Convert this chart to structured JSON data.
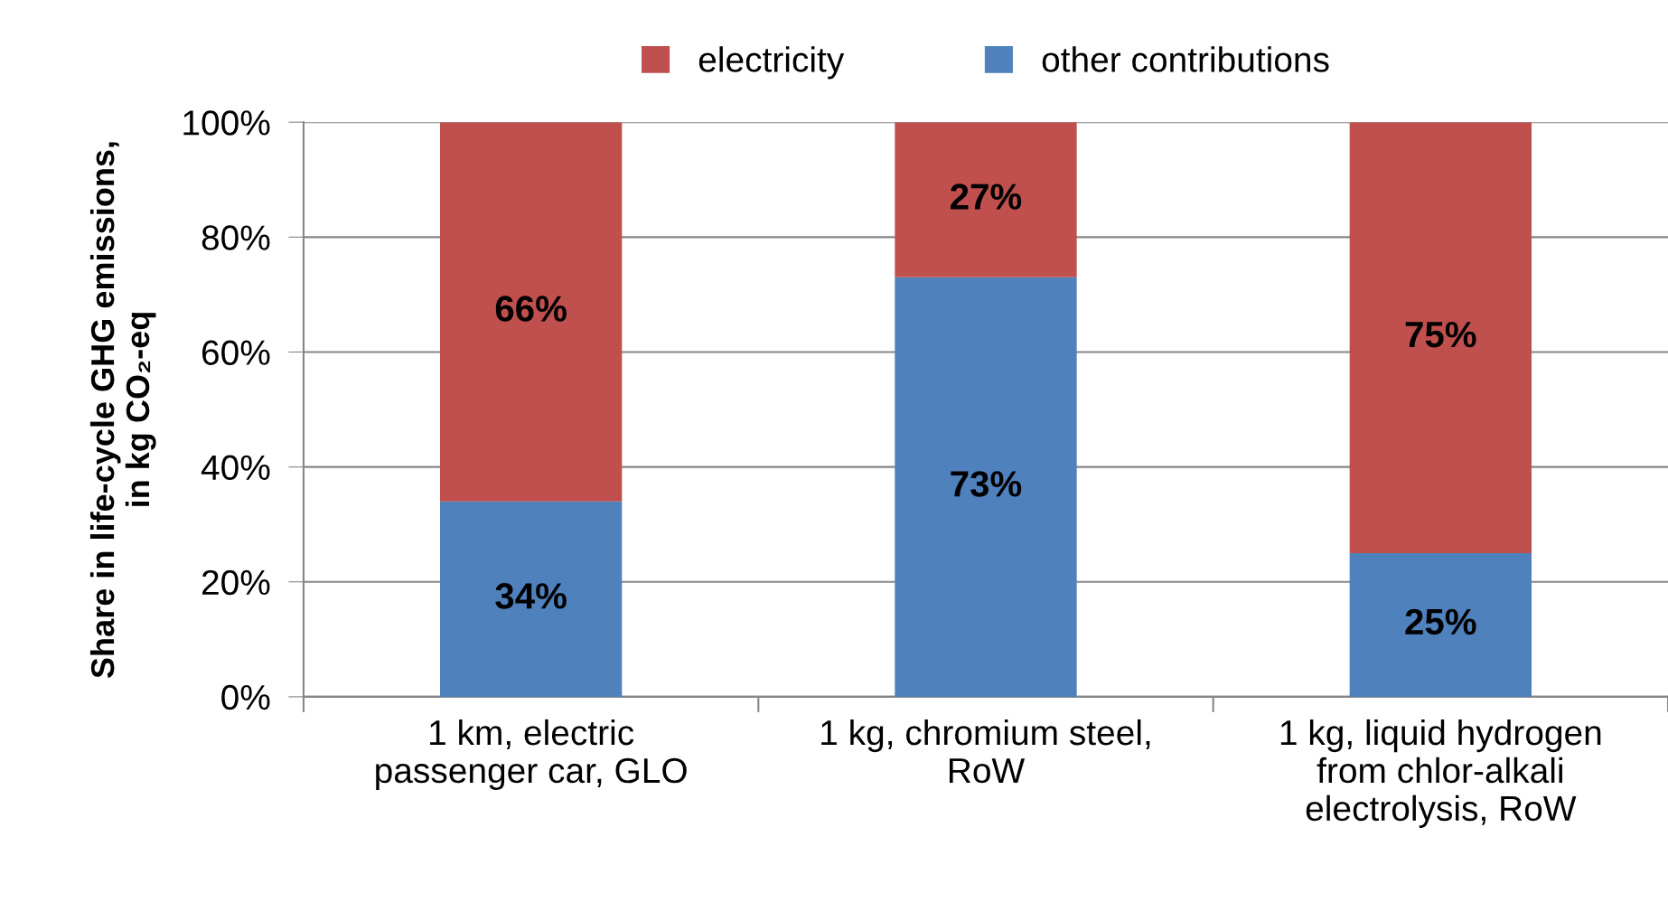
{
  "chart_data": {
    "type": "bar",
    "stacked": true,
    "ylabel": "Share in life-cycle GHG emissions,\nin kg CO₂-eq",
    "categories": [
      "1 km, electric\npassenger car, GLO",
      "1 kg, chromium steel,\nRoW",
      "1 kg, liquid hydrogen\nfrom chlor-alkali\nelectrolysis, RoW"
    ],
    "series": [
      {
        "name": "other contributions",
        "color": "#4f81bd",
        "values": [
          34,
          73,
          25
        ],
        "value_labels": [
          "34%",
          "73%",
          "25%"
        ]
      },
      {
        "name": "electricity",
        "color": "#c0504d",
        "values": [
          66,
          27,
          75
        ],
        "value_labels": [
          "66%",
          "27%",
          "75%"
        ]
      }
    ],
    "ylim": [
      0,
      100
    ],
    "yticks": [
      {
        "value": 0,
        "label": "0%"
      },
      {
        "value": 20,
        "label": "20%"
      },
      {
        "value": 40,
        "label": "40%"
      },
      {
        "value": 60,
        "label": "60%"
      },
      {
        "value": 80,
        "label": "80%"
      },
      {
        "value": 100,
        "label": "100%"
      }
    ],
    "grid": "y",
    "legend": "top"
  }
}
